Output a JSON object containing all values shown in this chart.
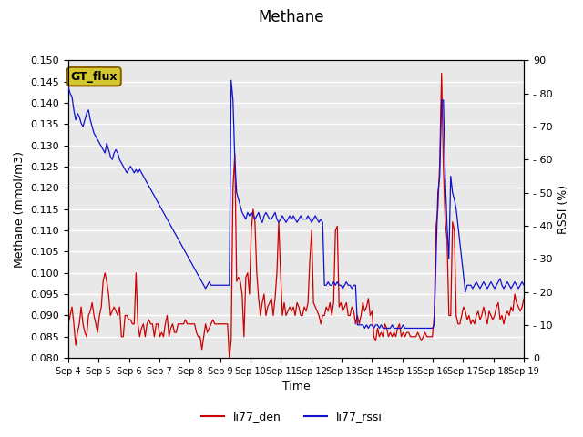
{
  "title": "Methane",
  "ylabel_left": "Methane (mmol/m3)",
  "ylabel_right": "RSSI (%)",
  "xlabel": "Time",
  "ylim_left": [
    0.08,
    0.15
  ],
  "ylim_right": [
    0,
    90
  ],
  "yticks_left": [
    0.08,
    0.085,
    0.09,
    0.095,
    0.1,
    0.105,
    0.11,
    0.115,
    0.12,
    0.125,
    0.13,
    0.135,
    0.14,
    0.145,
    0.15
  ],
  "yticks_right": [
    0,
    10,
    20,
    30,
    40,
    50,
    60,
    70,
    80,
    90
  ],
  "ytick_right_labels": [
    "0",
    "- 10",
    "- 20",
    "- 30",
    "- 40",
    "- 50",
    "- 60",
    "- 70",
    "- 80",
    "90"
  ],
  "xtick_labels": [
    "Sep 4",
    "Sep 5",
    "Sep 6",
    "Sep 7",
    "Sep 8",
    "Sep 9",
    "Sep 10",
    "Sep 11",
    "Sep 12",
    "Sep 13",
    "Sep 14",
    "Sep 15",
    "Sep 16",
    "Sep 17",
    "Sep 18",
    "Sep 19"
  ],
  "color_red": "#cc0000",
  "color_blue": "#1111cc",
  "legend_label_red": "li77_den",
  "legend_label_blue": "li77_rssi",
  "gt_flux_label": "GT_flux",
  "gt_flux_bg": "#d4c830",
  "gt_flux_border": "#8b6000",
  "background_color": "#e8e8e8",
  "grid_color": "#ffffff",
  "fig_bg": "#ffffff",
  "red_data": [
    0.088,
    0.09,
    0.092,
    0.088,
    0.083,
    0.086,
    0.088,
    0.092,
    0.088,
    0.086,
    0.085,
    0.09,
    0.091,
    0.093,
    0.09,
    0.088,
    0.086,
    0.09,
    0.092,
    0.098,
    0.1,
    0.098,
    0.095,
    0.09,
    0.091,
    0.092,
    0.091,
    0.09,
    0.092,
    0.085,
    0.085,
    0.09,
    0.09,
    0.089,
    0.089,
    0.088,
    0.088,
    0.1,
    0.088,
    0.085,
    0.087,
    0.088,
    0.085,
    0.088,
    0.089,
    0.088,
    0.088,
    0.085,
    0.088,
    0.088,
    0.085,
    0.086,
    0.085,
    0.088,
    0.09,
    0.085,
    0.087,
    0.088,
    0.086,
    0.086,
    0.088,
    0.088,
    0.088,
    0.088,
    0.089,
    0.088,
    0.088,
    0.088,
    0.088,
    0.088,
    0.086,
    0.085,
    0.085,
    0.082,
    0.085,
    0.088,
    0.086,
    0.087,
    0.088,
    0.089,
    0.088,
    0.088,
    0.088,
    0.088,
    0.088,
    0.088,
    0.088,
    0.088,
    0.08,
    0.084,
    0.12,
    0.128,
    0.098,
    0.099,
    0.098,
    0.095,
    0.085,
    0.099,
    0.1,
    0.095,
    0.11,
    0.115,
    0.112,
    0.1,
    0.094,
    0.09,
    0.093,
    0.095,
    0.09,
    0.092,
    0.093,
    0.094,
    0.09,
    0.094,
    0.1,
    0.112,
    0.1,
    0.09,
    0.093,
    0.09,
    0.091,
    0.092,
    0.091,
    0.092,
    0.09,
    0.093,
    0.092,
    0.09,
    0.09,
    0.092,
    0.091,
    0.093,
    0.103,
    0.11,
    0.093,
    0.092,
    0.091,
    0.09,
    0.088,
    0.09,
    0.09,
    0.092,
    0.091,
    0.093,
    0.09,
    0.093,
    0.11,
    0.111,
    0.092,
    0.093,
    0.091,
    0.092,
    0.093,
    0.09,
    0.09,
    0.092,
    0.091,
    0.088,
    0.09,
    0.088,
    0.09,
    0.093,
    0.091,
    0.092,
    0.094,
    0.09,
    0.091,
    0.085,
    0.084,
    0.087,
    0.085,
    0.086,
    0.085,
    0.088,
    0.087,
    0.085,
    0.086,
    0.085,
    0.086,
    0.085,
    0.087,
    0.088,
    0.085,
    0.086,
    0.085,
    0.086,
    0.086,
    0.085,
    0.085,
    0.085,
    0.085,
    0.086,
    0.085,
    0.084,
    0.085,
    0.086,
    0.085,
    0.085,
    0.085,
    0.085,
    0.09,
    0.111,
    0.115,
    0.126,
    0.147,
    0.125,
    0.112,
    0.108,
    0.09,
    0.09,
    0.112,
    0.11,
    0.09,
    0.088,
    0.088,
    0.09,
    0.092,
    0.091,
    0.089,
    0.09,
    0.088,
    0.089,
    0.088,
    0.09,
    0.091,
    0.089,
    0.09,
    0.092,
    0.09,
    0.088,
    0.091,
    0.09,
    0.089,
    0.09,
    0.092,
    0.093,
    0.089,
    0.09,
    0.088,
    0.09,
    0.091,
    0.09,
    0.092,
    0.091,
    0.095,
    0.093,
    0.092,
    0.091,
    0.092,
    0.094
  ],
  "blue_data_rssi": [
    82,
    80,
    79,
    75,
    72,
    74,
    73,
    71,
    70,
    72,
    74,
    75,
    72,
    70,
    68,
    67,
    66,
    65,
    64,
    63,
    62,
    65,
    63,
    61,
    60,
    62,
    63,
    62,
    60,
    59,
    58,
    57,
    56,
    57,
    58,
    57,
    56,
    57,
    56,
    57,
    56,
    55,
    54,
    53,
    52,
    51,
    50,
    49,
    48,
    47,
    46,
    45,
    44,
    43,
    42,
    41,
    40,
    39,
    38,
    37,
    36,
    35,
    34,
    33,
    32,
    31,
    30,
    29,
    28,
    27,
    26,
    25,
    24,
    23,
    22,
    21,
    22,
    23,
    22,
    22,
    22,
    22,
    22,
    22,
    22,
    22,
    22,
    22,
    22,
    84,
    78,
    60,
    50,
    48,
    46,
    44,
    43,
    42,
    44,
    43,
    44,
    43,
    42,
    43,
    44,
    42,
    41,
    43,
    44,
    43,
    42,
    42,
    43,
    44,
    42,
    41,
    42,
    43,
    42,
    41,
    42,
    43,
    42,
    43,
    42,
    41,
    42,
    43,
    42,
    42,
    42,
    43,
    42,
    41,
    42,
    43,
    42,
    41,
    42,
    41,
    22,
    22,
    23,
    22,
    22,
    23,
    22,
    23,
    22,
    22,
    21,
    22,
    23,
    22,
    22,
    21,
    22,
    22,
    10,
    10,
    10,
    10,
    9,
    10,
    9,
    10,
    10,
    9,
    10,
    10,
    9,
    10,
    9,
    9,
    9,
    9,
    9,
    10,
    9,
    9,
    9,
    9,
    9,
    10,
    9,
    9,
    9,
    9,
    9,
    9,
    9,
    9,
    9,
    9,
    9,
    9,
    9,
    9,
    9,
    9,
    10,
    30,
    50,
    55,
    78,
    78,
    55,
    40,
    30,
    55,
    50,
    48,
    45,
    40,
    35,
    30,
    25,
    20,
    22,
    22,
    22,
    21,
    22,
    23,
    22,
    21,
    22,
    23,
    22,
    21,
    22,
    23,
    22,
    21,
    22,
    23,
    24,
    22,
    21,
    22,
    23,
    22,
    21,
    22,
    23,
    22,
    21,
    22,
    23,
    22
  ]
}
